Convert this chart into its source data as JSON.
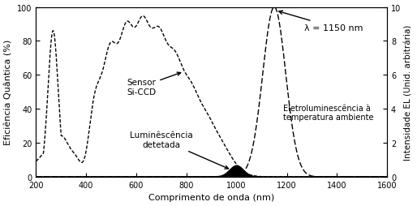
{
  "title": "",
  "xlabel": "Comprimento de onda (nm)",
  "ylabel_left": "Eficiência Quântica (%)",
  "ylabel_right": "Intensidade EL (Unid. arbitrária)",
  "xlim": [
    200,
    1600
  ],
  "ylim_left": [
    0,
    100
  ],
  "ylim_right": [
    0,
    10
  ],
  "xticks": [
    200,
    400,
    600,
    800,
    1000,
    1200,
    1400,
    1600
  ],
  "yticks_left": [
    0,
    20,
    40,
    60,
    80,
    100
  ],
  "yticks_right": [
    0,
    2,
    4,
    6,
    8,
    10
  ],
  "annotation_siCCD": "Sensor\nSi-CCD",
  "annotation_lumi": "Luminêscência\ndetetada",
  "annotation_EL": "Eletroluminescência à\ntemperatura ambiente",
  "annotation_lambda": "λ = 1150 nm",
  "background_color": "#ffffff",
  "line_color_main": "#000000",
  "line_color_EL": "#666666"
}
